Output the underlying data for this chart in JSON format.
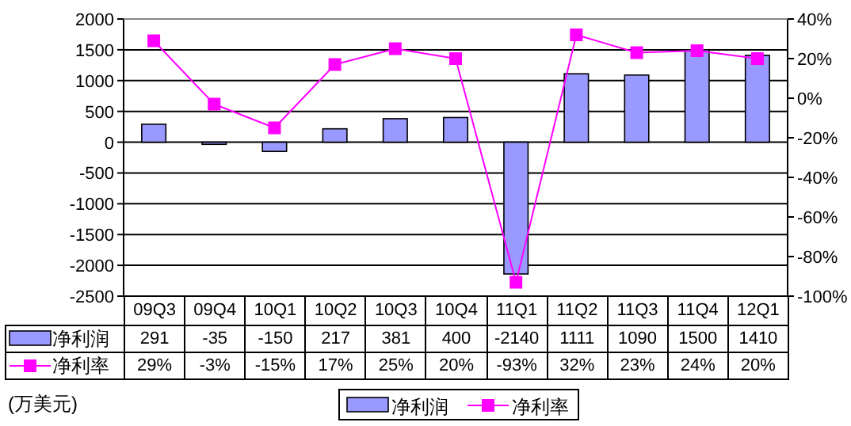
{
  "chart_data": {
    "type": "bar",
    "categories": [
      "09Q3",
      "09Q4",
      "10Q1",
      "10Q2",
      "10Q3",
      "10Q4",
      "11Q1",
      "11Q2",
      "11Q3",
      "11Q4",
      "12Q1"
    ],
    "series": [
      {
        "name": "净利润",
        "color": "#9999ff",
        "values": [
          291,
          -35,
          -150,
          217,
          381,
          400,
          -2140,
          1111,
          1090,
          1500,
          1410
        ]
      },
      {
        "name": "净利率",
        "type": "line",
        "axis": "y2",
        "color": "#ff00ff",
        "values": [
          29,
          -3,
          -15,
          17,
          25,
          20,
          -93,
          32,
          23,
          24,
          20
        ],
        "value_labels": [
          "29%",
          "-3%",
          "-15%",
          "17%",
          "25%",
          "20%",
          "-93%",
          "32%",
          "23%",
          "24%",
          "20%"
        ]
      }
    ],
    "ylim": [
      -2500,
      2000
    ],
    "yticks": [
      -2500,
      -2000,
      -1500,
      -1000,
      -500,
      0,
      500,
      1000,
      1500,
      2000
    ],
    "y2lim": [
      -100,
      40
    ],
    "y2ticks": [
      {
        "value": -100,
        "label": "-100%"
      },
      {
        "value": -80,
        "label": "-80%"
      },
      {
        "value": -60,
        "label": "-60%"
      },
      {
        "value": -40,
        "label": "-40%"
      },
      {
        "value": -20,
        "label": "-20%"
      },
      {
        "value": 0,
        "label": "0%"
      },
      {
        "value": 20,
        "label": "20%"
      },
      {
        "value": 40,
        "label": "40%"
      }
    ],
    "data_labels": true,
    "grid": "y",
    "legend": "bottom",
    "marker": "square",
    "annotations": [
      "(万美元)"
    ]
  }
}
